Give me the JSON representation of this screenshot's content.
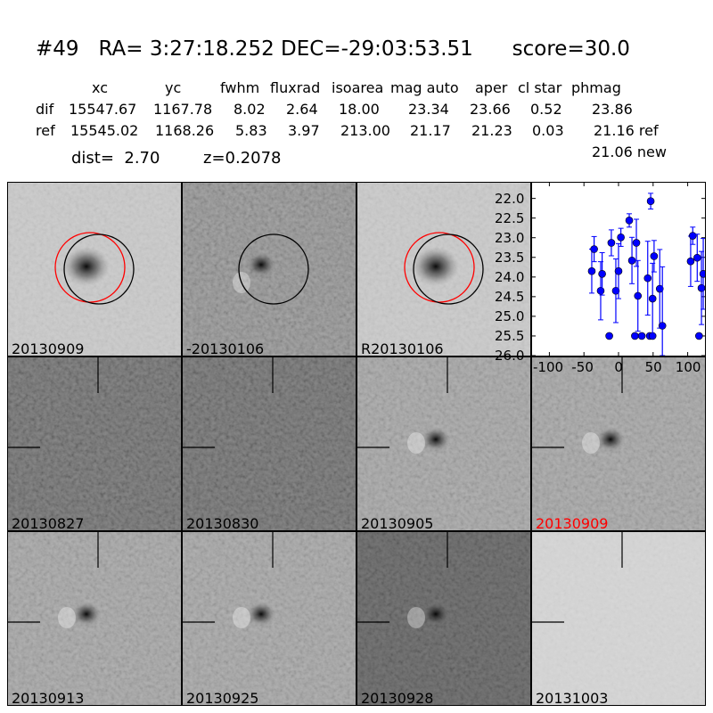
{
  "header": {
    "title": "#49   RA= 3:27:18.252 DEC=-29:03:53.51      score=30.0",
    "columns": [
      "xc",
      "yc",
      "fwhm",
      "fluxrad",
      "isoarea",
      "mag auto",
      "aper",
      "cl star",
      "phmag"
    ],
    "rows": [
      {
        "label": "dif",
        "values": [
          "15547.67",
          "1167.78",
          "8.02",
          "2.64",
          "18.00",
          "23.34",
          "23.66",
          "0.52",
          "23.86"
        ]
      },
      {
        "label": "ref",
        "values": [
          "15545.02",
          "1168.26",
          "5.83",
          "3.97",
          "213.00",
          "21.17",
          "21.23",
          "0.03",
          "21.16 ref"
        ]
      }
    ],
    "extra_phmag": "21.06 new",
    "dist": "dist=  2.70",
    "z": "z=0.2078"
  },
  "stamps": [
    {
      "label": "20130909",
      "type": "ref",
      "circles": [
        "red",
        "black"
      ]
    },
    {
      "label": "-20130106",
      "type": "diff",
      "circles": [
        "black"
      ]
    },
    {
      "label": "R20130106",
      "type": "ref",
      "circles": [
        "red",
        "black"
      ]
    },
    {
      "label": "20130827",
      "type": "noise"
    },
    {
      "label": "20130830",
      "type": "noise"
    },
    {
      "label": "20130905",
      "type": "src"
    },
    {
      "label": "20130909",
      "type": "src",
      "label_color": "#ff0000"
    },
    {
      "label": "20130913",
      "type": "src"
    },
    {
      "label": "20130925",
      "type": "src"
    },
    {
      "label": "20130928",
      "type": "dark"
    },
    {
      "label": "20131003",
      "type": "light"
    }
  ],
  "chart_data": {
    "type": "scatter",
    "xlim": [
      -125,
      125
    ],
    "ylim": [
      26.0,
      21.6
    ],
    "y_inverted": true,
    "xticks": [
      "-100",
      "-50",
      "0",
      "50",
      "100"
    ],
    "xtick_values": [
      -100,
      -50,
      0,
      50,
      100
    ],
    "yticks": [
      "22.0",
      "22.5",
      "23.0",
      "23.5",
      "24.0",
      "24.5",
      "25.0",
      "25.5",
      "26.0"
    ],
    "ytick_values": [
      22.0,
      22.5,
      23.0,
      23.5,
      24.0,
      24.5,
      25.0,
      25.5,
      26.0
    ],
    "color": "#0000ff",
    "points": [
      [
        -38.7,
        23.85,
        0.56
      ],
      [
        -35.3,
        23.29,
        0.32
      ],
      [
        -25.8,
        24.35,
        0.74
      ],
      [
        -23.7,
        23.92,
        0.54
      ],
      [
        -13.4,
        25.5,
        0.05
      ],
      [
        -10.4,
        23.13,
        0.33
      ],
      [
        -3.9,
        24.35,
        0.81
      ],
      [
        0,
        23.85,
        0.7
      ],
      [
        3.4,
        22.99,
        0.23
      ],
      [
        15.5,
        22.56,
        0.17
      ],
      [
        19.4,
        23.58,
        0.59
      ],
      [
        23.7,
        25.5,
        0.05
      ],
      [
        25.8,
        23.13,
        0.6
      ],
      [
        28,
        24.48,
        0.9
      ],
      [
        33.6,
        25.5,
        0.05
      ],
      [
        42.2,
        24.03,
        0.94
      ],
      [
        45.2,
        25.5,
        0.05
      ],
      [
        46.5,
        22.07,
        0.2
      ],
      [
        49.2,
        25.5,
        0.05
      ],
      [
        49.2,
        24.55,
        0.9
      ],
      [
        51.4,
        23.47,
        0.4
      ],
      [
        59.6,
        24.3,
        1.0
      ],
      [
        63.4,
        25.24,
        1.5
      ],
      [
        104.3,
        23.6,
        0.64
      ],
      [
        107.3,
        22.95,
        0.22
      ],
      [
        113.8,
        23.51,
        0.6
      ],
      [
        116.4,
        25.5,
        0.05
      ],
      [
        119.9,
        24.28,
        0.93
      ],
      [
        122.5,
        23.92,
        0.9
      ]
    ]
  }
}
